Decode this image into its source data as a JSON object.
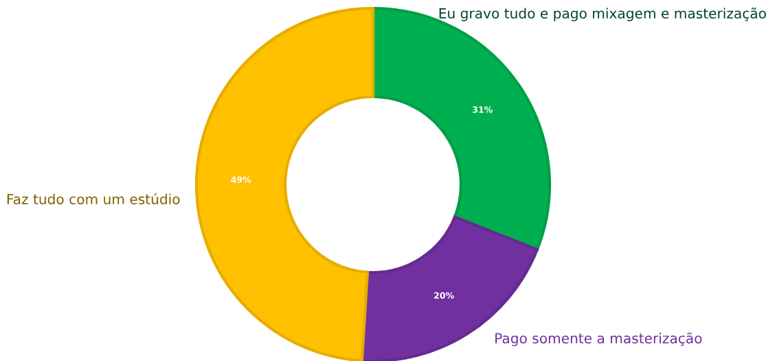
{
  "chart_data": {
    "type": "donut",
    "categories": [
      "Eu gravo tudo e pago mixagem e masterização",
      "Pago somente a masterização",
      "Faz tudo com um estúdio"
    ],
    "values": [
      31,
      20,
      49
    ],
    "value_labels": [
      "31%",
      "20%",
      "49%"
    ],
    "colors": [
      "#00b050",
      "#7030a0",
      "#ffc000"
    ],
    "legend": false
  }
}
